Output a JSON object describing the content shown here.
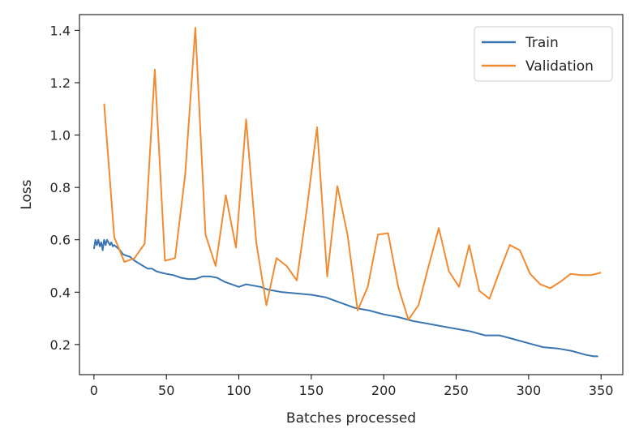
{
  "chart_data": {
    "type": "line",
    "title": "",
    "xlabel": "Batches processed",
    "ylabel": "Loss",
    "xlim": [
      -10,
      365
    ],
    "ylim": [
      0.085,
      1.46
    ],
    "xticks": [
      0,
      50,
      100,
      150,
      200,
      250,
      300,
      350
    ],
    "xtick_labels": [
      "0",
      "50",
      "100",
      "150",
      "200",
      "250",
      "300",
      "350"
    ],
    "yticks": [
      0.2,
      0.4,
      0.6,
      0.8,
      1.0,
      1.2,
      1.4
    ],
    "ytick_labels": [
      "0.2",
      "0.4",
      "0.6",
      "0.8",
      "1.0",
      "1.2",
      "1.4"
    ],
    "grid": false,
    "legend_position": "top-right",
    "series": [
      {
        "name": "Train",
        "color": "#3b75af",
        "x": [
          0,
          1,
          2,
          3,
          4,
          5,
          6,
          7,
          8,
          9,
          10,
          11,
          12,
          13,
          14,
          16,
          18,
          20,
          22,
          25,
          28,
          31,
          34,
          37,
          40,
          43,
          46,
          50,
          55,
          60,
          65,
          70,
          75,
          80,
          85,
          90,
          95,
          100,
          105,
          110,
          115,
          120,
          130,
          140,
          150,
          160,
          170,
          180,
          190,
          200,
          210,
          220,
          230,
          240,
          250,
          260,
          270,
          280,
          290,
          300,
          310,
          320,
          330,
          340,
          345,
          348
        ],
        "y": [
          0.565,
          0.6,
          0.58,
          0.6,
          0.575,
          0.59,
          0.56,
          0.6,
          0.58,
          0.6,
          0.59,
          0.58,
          0.59,
          0.575,
          0.58,
          0.57,
          0.56,
          0.545,
          0.54,
          0.535,
          0.52,
          0.51,
          0.5,
          0.49,
          0.49,
          0.48,
          0.475,
          0.47,
          0.465,
          0.455,
          0.45,
          0.45,
          0.46,
          0.46,
          0.455,
          0.44,
          0.43,
          0.42,
          0.43,
          0.425,
          0.42,
          0.41,
          0.4,
          0.395,
          0.39,
          0.38,
          0.36,
          0.34,
          0.33,
          0.315,
          0.305,
          0.29,
          0.28,
          0.27,
          0.26,
          0.25,
          0.235,
          0.235,
          0.22,
          0.205,
          0.19,
          0.185,
          0.175,
          0.16,
          0.155,
          0.155
        ]
      },
      {
        "name": "Validation",
        "color": "#f08b33",
        "x": [
          7,
          14,
          21,
          28,
          35,
          42,
          49,
          56,
          63,
          70,
          77,
          84,
          91,
          98,
          105,
          112,
          119,
          126,
          133,
          140,
          147,
          154,
          161,
          168,
          175,
          182,
          189,
          196,
          203,
          210,
          217,
          224,
          231,
          238,
          245,
          252,
          259,
          266,
          273,
          280,
          287,
          294,
          301,
          308,
          315,
          322,
          329,
          336,
          343,
          350
        ],
        "y": [
          1.12,
          0.61,
          0.515,
          0.53,
          0.585,
          1.25,
          0.52,
          0.53,
          0.85,
          1.41,
          0.62,
          0.5,
          0.77,
          0.57,
          1.06,
          0.59,
          0.35,
          0.53,
          0.5,
          0.445,
          0.72,
          1.03,
          0.46,
          0.805,
          0.62,
          0.33,
          0.42,
          0.62,
          0.625,
          0.42,
          0.295,
          0.35,
          0.5,
          0.645,
          0.48,
          0.42,
          0.58,
          0.405,
          0.375,
          0.48,
          0.58,
          0.56,
          0.47,
          0.43,
          0.415,
          0.44,
          0.47,
          0.465,
          0.465,
          0.475
        ]
      }
    ]
  }
}
